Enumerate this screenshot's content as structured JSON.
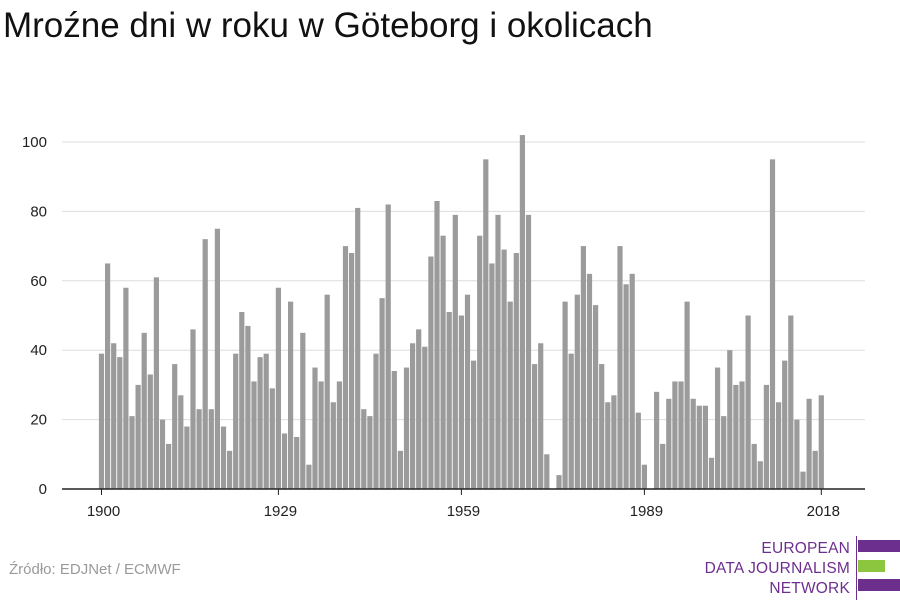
{
  "title": "Mroźne dni w roku w Göteborg i okolicach",
  "source": "Źródło: EDJNet / ECMWF",
  "logo": {
    "lines": [
      "EUROPEAN",
      "DATA JOURNALISM",
      "NETWORK"
    ],
    "colors": {
      "purple": "#6d2f8e",
      "green": "#8cc63f"
    }
  },
  "colors": {
    "bar": "#9b9b9b",
    "grid": "#dddddd",
    "axis": "#222222",
    "text": "#222222"
  },
  "chart_data": {
    "type": "bar",
    "x_start": 1900,
    "values": [
      39,
      65,
      42,
      38,
      58,
      21,
      30,
      45,
      33,
      61,
      20,
      13,
      36,
      27,
      18,
      46,
      23,
      72,
      23,
      75,
      18,
      11,
      39,
      51,
      47,
      31,
      38,
      39,
      29,
      58,
      16,
      54,
      15,
      45,
      7,
      35,
      31,
      56,
      25,
      31,
      70,
      68,
      81,
      23,
      21,
      39,
      55,
      82,
      34,
      11,
      35,
      42,
      46,
      41,
      67,
      83,
      73,
      51,
      79,
      50,
      56,
      37,
      73,
      95,
      65,
      79,
      69,
      54,
      68,
      102,
      79,
      36,
      42,
      10,
      0,
      4,
      54,
      39,
      56,
      70,
      62,
      53,
      36,
      25,
      27,
      70,
      59,
      62,
      22,
      7,
      0,
      28,
      13,
      26,
      31,
      31,
      54,
      26,
      24,
      24,
      9,
      35,
      21,
      40,
      30,
      31,
      50,
      13,
      8,
      30,
      95,
      25,
      37,
      50,
      20,
      5,
      26,
      11,
      27
    ],
    "x_ticks": [
      1900,
      1929,
      1959,
      1989,
      2018
    ],
    "x_tick_labels": [
      "1900",
      "1929",
      "1959",
      "1989",
      "2018"
    ],
    "y_ticks": [
      0,
      20,
      40,
      60,
      80,
      100
    ],
    "y_tick_labels": [
      "0",
      "20",
      "40",
      "60",
      "80",
      "100"
    ],
    "ylim": [
      0,
      100
    ],
    "grid": true
  }
}
